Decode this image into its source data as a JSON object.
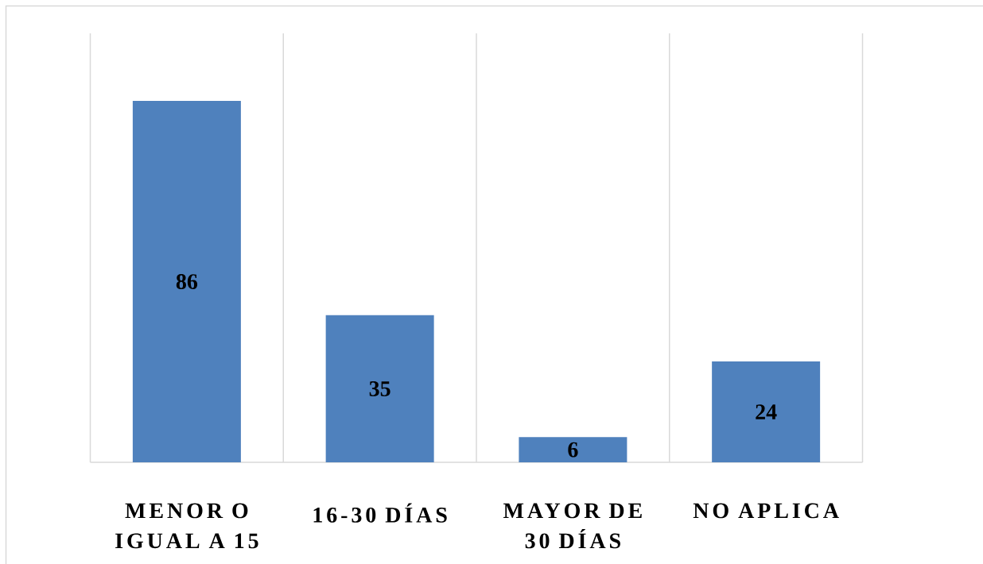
{
  "chart_data": {
    "type": "bar",
    "categories": [
      "MENOR O IGUAL A 15",
      "16-30 DÍAS",
      "MAYOR DE 30 DÍAS",
      "NO APLICA"
    ],
    "values": [
      86,
      35,
      6,
      24
    ],
    "color": "#4f81bd",
    "data_labels": true,
    "grid": "x"
  }
}
